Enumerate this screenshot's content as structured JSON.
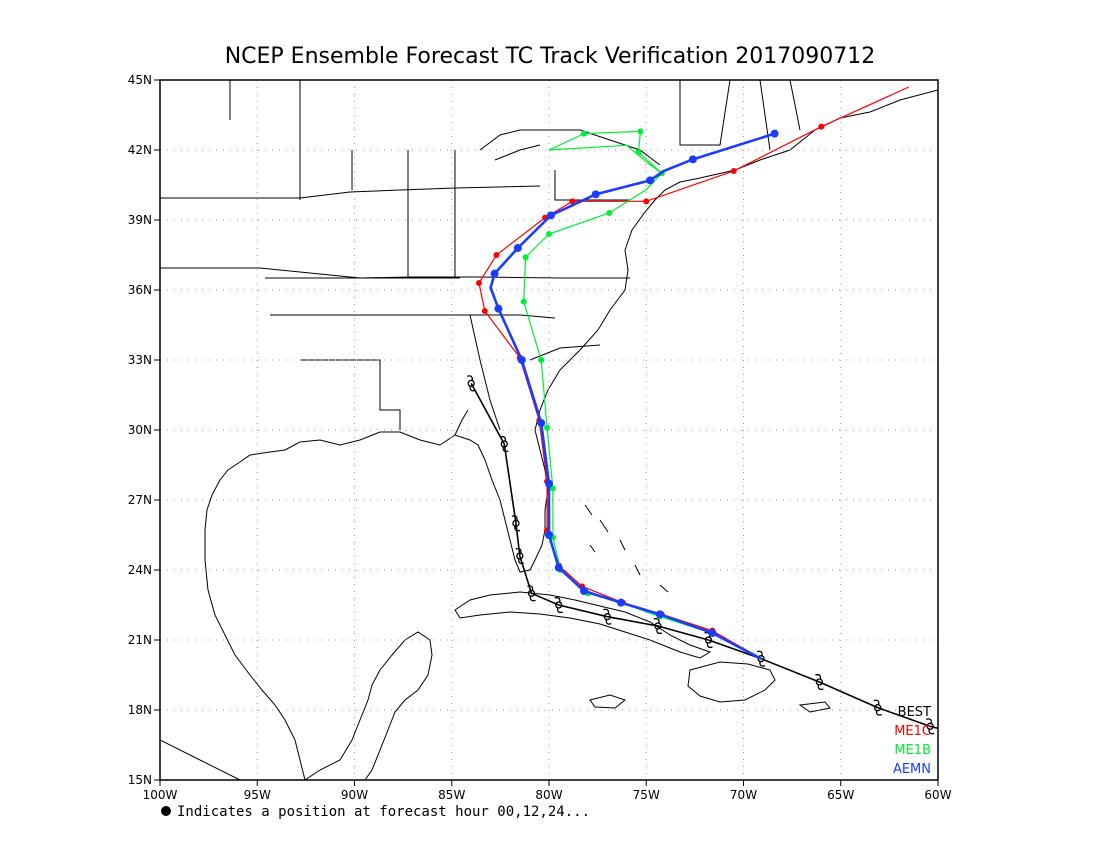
{
  "title": "NCEP Ensemble Forecast TC Track Verification 2017090712",
  "footnote": "Indicates a position at forecast hour 00,12,24...",
  "x_axis": {
    "ticks": [
      {
        "lon": -100,
        "label": "100W"
      },
      {
        "lon": -95,
        "label": "95W"
      },
      {
        "lon": -90,
        "label": "90W"
      },
      {
        "lon": -85,
        "label": "85W"
      },
      {
        "lon": -80,
        "label": "80W"
      },
      {
        "lon": -75,
        "label": "75W"
      },
      {
        "lon": -70,
        "label": "70W"
      },
      {
        "lon": -65,
        "label": "65W"
      },
      {
        "lon": -60,
        "label": "60W"
      }
    ]
  },
  "y_axis": {
    "ticks": [
      {
        "lat": 15,
        "label": "15N"
      },
      {
        "lat": 18,
        "label": "18N"
      },
      {
        "lat": 21,
        "label": "21N"
      },
      {
        "lat": 24,
        "label": "24N"
      },
      {
        "lat": 27,
        "label": "27N"
      },
      {
        "lat": 30,
        "label": "30N"
      },
      {
        "lat": 33,
        "label": "33N"
      },
      {
        "lat": 36,
        "label": "36N"
      },
      {
        "lat": 39,
        "label": "39N"
      },
      {
        "lat": 42,
        "label": "42N"
      },
      {
        "lat": 45,
        "label": "45N"
      }
    ]
  },
  "map_extent": {
    "lon": [
      -100,
      -60
    ],
    "lat": [
      15,
      45
    ]
  },
  "grid": "dotted",
  "legend_position": "bottom-right",
  "tracks": [
    {
      "name": "BEST",
      "color": "#000000",
      "marker": "hurricane-symbol",
      "points": [
        [
          -59,
          17.0
        ],
        [
          -60.4,
          17.3
        ],
        [
          -63.1,
          18.1
        ],
        [
          -66.1,
          19.2
        ],
        [
          -69.1,
          20.2
        ],
        [
          -71.8,
          21.0
        ],
        [
          -74.4,
          21.6
        ],
        [
          -77.0,
          22.0
        ],
        [
          -79.5,
          22.5
        ],
        [
          -80.9,
          23.0
        ],
        [
          -81.5,
          24.6
        ],
        [
          -81.7,
          26.0
        ],
        [
          -82.3,
          29.4
        ],
        [
          -84.0,
          32.0
        ]
      ],
      "storm_symbols": [
        [
          -60.4,
          17.3
        ],
        [
          -63.1,
          18.1
        ],
        [
          -66.1,
          19.2
        ],
        [
          -69.1,
          20.2
        ],
        [
          -71.8,
          21.0
        ],
        [
          -74.4,
          21.6
        ],
        [
          -77.0,
          22.0
        ],
        [
          -79.5,
          22.5
        ],
        [
          -80.9,
          23.0
        ],
        [
          -81.5,
          24.6
        ],
        [
          -81.7,
          26.0
        ],
        [
          -82.3,
          29.4
        ],
        [
          -84.0,
          32.0
        ]
      ]
    },
    {
      "name": "ME1C",
      "color": "#ff0000",
      "marker": "dot",
      "points": [
        [
          -69.1,
          20.2
        ],
        [
          -71.6,
          21.4
        ],
        [
          -74.2,
          22.1
        ],
        [
          -76.2,
          22.6
        ],
        [
          -78.3,
          23.3
        ],
        [
          -79.5,
          24.2
        ],
        [
          -80.1,
          25.7
        ],
        [
          -80.1,
          27.8
        ],
        [
          -80.5,
          30.4
        ],
        [
          -81.5,
          33.1
        ],
        [
          -83.3,
          35.1
        ],
        [
          -83.6,
          36.3
        ],
        [
          -82.7,
          37.5
        ],
        [
          -80.2,
          39.1
        ],
        [
          -78.8,
          39.8
        ],
        [
          -75.0,
          39.8
        ],
        [
          -70.5,
          41.1
        ],
        [
          -66.0,
          43.0
        ],
        [
          -61.5,
          44.7
        ]
      ],
      "dots": [
        [
          -71.6,
          21.4
        ],
        [
          -74.2,
          22.1
        ],
        [
          -76.2,
          22.6
        ],
        [
          -78.3,
          23.3
        ],
        [
          -79.5,
          24.2
        ],
        [
          -80.1,
          25.7
        ],
        [
          -80.1,
          27.8
        ],
        [
          -80.5,
          30.4
        ],
        [
          -81.5,
          33.1
        ],
        [
          -83.3,
          35.1
        ],
        [
          -83.6,
          36.3
        ],
        [
          -82.7,
          37.5
        ],
        [
          -80.2,
          39.1
        ],
        [
          -78.8,
          39.8
        ],
        [
          -75.0,
          39.8
        ],
        [
          -70.5,
          41.1
        ],
        [
          -66.0,
          43.0
        ]
      ]
    },
    {
      "name": "ME1B",
      "color": "#00ee33",
      "marker": "dot",
      "points": [
        [
          -69.1,
          20.2
        ],
        [
          -71.6,
          21.3
        ],
        [
          -74.3,
          22.0
        ],
        [
          -76.3,
          22.6
        ],
        [
          -78.0,
          23.0
        ],
        [
          -79.4,
          24.0
        ],
        [
          -79.8,
          25.4
        ],
        [
          -79.8,
          27.5
        ],
        [
          -80.1,
          30.1
        ],
        [
          -80.4,
          33.0
        ],
        [
          -81.3,
          35.5
        ],
        [
          -81.2,
          37.4
        ],
        [
          -80.0,
          38.4
        ],
        [
          -76.9,
          39.3
        ],
        [
          -75.0,
          40.3
        ],
        [
          -74.2,
          41.0
        ],
        [
          -75.4,
          41.9
        ],
        [
          -75.3,
          42.8
        ],
        [
          -78.2,
          42.7
        ],
        [
          -80.0,
          42.0
        ],
        [
          -76.0,
          42.2
        ],
        [
          -75.0,
          41.5
        ],
        [
          -74.2,
          41.0
        ]
      ],
      "dots": [
        [
          -71.6,
          21.3
        ],
        [
          -74.3,
          22.0
        ],
        [
          -76.3,
          22.6
        ],
        [
          -78.0,
          23.0
        ],
        [
          -79.4,
          24.0
        ],
        [
          -79.8,
          25.4
        ],
        [
          -79.8,
          27.5
        ],
        [
          -80.1,
          30.1
        ],
        [
          -80.4,
          33.0
        ],
        [
          -81.3,
          35.5
        ],
        [
          -81.2,
          37.4
        ],
        [
          -80.0,
          38.4
        ],
        [
          -76.9,
          39.3
        ],
        [
          -74.2,
          41.0
        ],
        [
          -75.4,
          41.9
        ],
        [
          -75.3,
          42.8
        ],
        [
          -78.2,
          42.7
        ]
      ]
    },
    {
      "name": "AEMN",
      "color": "#1a3cff",
      "marker": "dot",
      "points": [
        [
          -69.1,
          20.2
        ],
        [
          -71.6,
          21.3
        ],
        [
          -74.3,
          22.1
        ],
        [
          -76.3,
          22.6
        ],
        [
          -78.2,
          23.1
        ],
        [
          -79.5,
          24.1
        ],
        [
          -80.0,
          25.5
        ],
        [
          -80.0,
          27.7
        ],
        [
          -80.4,
          30.3
        ],
        [
          -81.4,
          33.0
        ],
        [
          -82.6,
          35.2
        ],
        [
          -83.0,
          36.1
        ],
        [
          -82.8,
          36.7
        ],
        [
          -81.6,
          37.8
        ],
        [
          -79.9,
          39.2
        ],
        [
          -77.6,
          40.1
        ],
        [
          -74.8,
          40.7
        ],
        [
          -74.1,
          41.1
        ],
        [
          -72.6,
          41.6
        ],
        [
          -68.4,
          42.7
        ]
      ],
      "dots": [
        [
          -71.6,
          21.3
        ],
        [
          -74.3,
          22.1
        ],
        [
          -76.3,
          22.6
        ],
        [
          -78.2,
          23.1
        ],
        [
          -79.5,
          24.1
        ],
        [
          -80.0,
          25.5
        ],
        [
          -80.0,
          27.7
        ],
        [
          -80.4,
          30.3
        ],
        [
          -81.4,
          33.0
        ],
        [
          -82.6,
          35.2
        ],
        [
          -82.8,
          36.7
        ],
        [
          -81.6,
          37.8
        ],
        [
          -79.9,
          39.2
        ],
        [
          -77.6,
          40.1
        ],
        [
          -74.8,
          40.7
        ],
        [
          -72.6,
          41.6
        ],
        [
          -68.4,
          42.7
        ]
      ]
    }
  ]
}
